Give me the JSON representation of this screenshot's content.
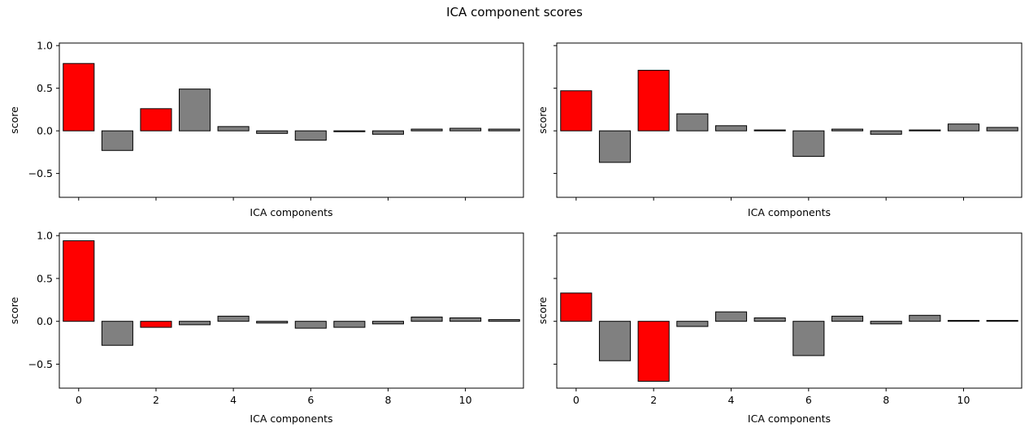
{
  "figure": {
    "title": "ICA component scores"
  },
  "colors": {
    "excluded": "#ff0000",
    "component": "#808080",
    "edge": "#000000"
  },
  "chart_data": [
    {
      "type": "bar",
      "xlabel": "ICA components",
      "ylabel": "score",
      "x": [
        0,
        1,
        2,
        3,
        4,
        5,
        6,
        7,
        8,
        9,
        10,
        11
      ],
      "values": [
        0.79,
        -0.23,
        0.26,
        0.49,
        0.05,
        -0.03,
        -0.11,
        -0.01,
        -0.04,
        0.02,
        0.03,
        0.02
      ],
      "excluded": [
        0,
        2
      ],
      "xlim": [
        -0.5,
        11.5
      ],
      "ylim": [
        -0.78,
        1.03
      ],
      "yticks": [
        -0.5,
        0.0,
        0.5,
        1.0
      ],
      "yticklabels": [
        "−0.5",
        "0.0",
        "0.5",
        "1.0"
      ],
      "xticks": [
        0,
        2,
        4,
        6,
        8,
        10
      ],
      "xticklabels": [],
      "show_xlabel": true,
      "show_ylabel_ticks": true
    },
    {
      "type": "bar",
      "xlabel": "ICA components",
      "ylabel": "score",
      "x": [
        0,
        1,
        2,
        3,
        4,
        5,
        6,
        7,
        8,
        9,
        10,
        11
      ],
      "values": [
        0.47,
        -0.37,
        0.71,
        0.2,
        0.06,
        0.01,
        -0.3,
        0.02,
        -0.04,
        0.01,
        0.08,
        0.04
      ],
      "excluded": [
        0,
        2
      ],
      "xlim": [
        -0.5,
        11.5
      ],
      "ylim": [
        -0.78,
        1.03
      ],
      "yticks": [
        -0.5,
        0.0,
        0.5,
        1.0
      ],
      "yticklabels": [],
      "xticks": [
        0,
        2,
        4,
        6,
        8,
        10
      ],
      "xticklabels": [],
      "show_xlabel": true,
      "show_ylabel_ticks": false
    },
    {
      "type": "bar",
      "xlabel": "ICA components",
      "ylabel": "score",
      "x": [
        0,
        1,
        2,
        3,
        4,
        5,
        6,
        7,
        8,
        9,
        10,
        11
      ],
      "values": [
        0.94,
        -0.28,
        -0.07,
        -0.04,
        0.06,
        -0.02,
        -0.08,
        -0.07,
        -0.03,
        0.05,
        0.04,
        0.02
      ],
      "excluded": [
        0,
        2
      ],
      "xlim": [
        -0.5,
        11.5
      ],
      "ylim": [
        -0.78,
        1.03
      ],
      "yticks": [
        -0.5,
        0.0,
        0.5,
        1.0
      ],
      "yticklabels": [
        "−0.5",
        "0.0",
        "0.5",
        "1.0"
      ],
      "xticks": [
        0,
        2,
        4,
        6,
        8,
        10
      ],
      "xticklabels": [
        "0",
        "2",
        "4",
        "6",
        "8",
        "10"
      ],
      "show_xlabel": true,
      "show_ylabel_ticks": true
    },
    {
      "type": "bar",
      "xlabel": "ICA components",
      "ylabel": "score",
      "x": [
        0,
        1,
        2,
        3,
        4,
        5,
        6,
        7,
        8,
        9,
        10,
        11
      ],
      "values": [
        0.33,
        -0.46,
        -0.7,
        -0.06,
        0.11,
        0.04,
        -0.4,
        0.06,
        -0.03,
        0.07,
        0.01,
        0.01
      ],
      "excluded": [
        0,
        2
      ],
      "xlim": [
        -0.5,
        11.5
      ],
      "ylim": [
        -0.78,
        1.03
      ],
      "yticks": [
        -0.5,
        0.0,
        0.5,
        1.0
      ],
      "yticklabels": [],
      "xticks": [
        0,
        2,
        4,
        6,
        8,
        10
      ],
      "xticklabels": [
        "0",
        "2",
        "4",
        "6",
        "8",
        "10"
      ],
      "show_xlabel": true,
      "show_ylabel_ticks": false
    }
  ]
}
